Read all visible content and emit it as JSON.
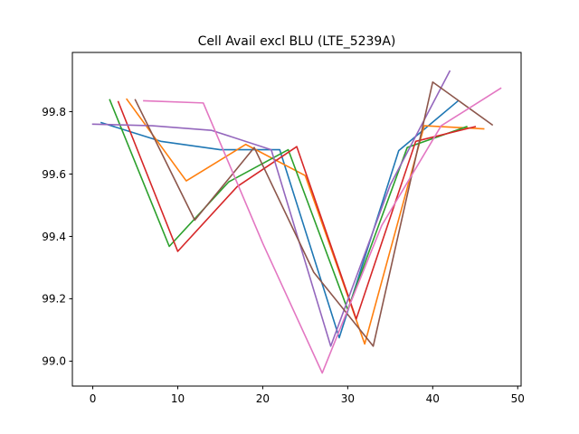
{
  "chart_data": {
    "type": "line",
    "title": "Cell Avail excl BLU (LTE_5239A)",
    "xlabel": "",
    "ylabel": "",
    "xlim": [
      -2.4,
      50.4
    ],
    "ylim": [
      98.92,
      99.99
    ],
    "xticks": [
      0,
      10,
      20,
      30,
      40,
      50
    ],
    "yticks": [
      99.0,
      99.2,
      99.4,
      99.6,
      99.8
    ],
    "ytick_labels": [
      "99.0",
      "99.2",
      "99.4",
      "99.6",
      "99.8"
    ],
    "grid": false,
    "legend": "none",
    "series": [
      {
        "color": "#1f77b4",
        "x": [
          1,
          8,
          15,
          22,
          29,
          36,
          43
        ],
        "y": [
          99.765,
          99.705,
          99.678,
          99.678,
          99.075,
          99.675,
          99.835
        ]
      },
      {
        "color": "#ff7f0e",
        "x": [
          4,
          11,
          18,
          25,
          32,
          39,
          46
        ],
        "y": [
          99.84,
          99.578,
          99.695,
          99.595,
          99.055,
          99.755,
          99.745
        ]
      },
      {
        "color": "#2ca02c",
        "x": [
          2,
          9,
          16,
          23,
          30,
          37,
          44
        ],
        "y": [
          99.838,
          99.368,
          99.575,
          99.678,
          99.165,
          99.685,
          99.752
        ]
      },
      {
        "color": "#d62728",
        "x": [
          3,
          10,
          17,
          24,
          31,
          38,
          45
        ],
        "y": [
          99.832,
          99.352,
          99.56,
          99.688,
          99.135,
          99.705,
          99.752
        ]
      },
      {
        "color": "#9467bd",
        "x": [
          0,
          7,
          14,
          21,
          28,
          35,
          42
        ],
        "y": [
          99.76,
          99.755,
          99.74,
          99.678,
          99.048,
          99.565,
          99.93
        ]
      },
      {
        "color": "#8c564b",
        "x": [
          5,
          12,
          19,
          26,
          33,
          40,
          47
        ],
        "y": [
          99.838,
          99.452,
          99.685,
          99.285,
          99.048,
          99.895,
          99.758
        ]
      },
      {
        "color": "#e377c2",
        "x": [
          6,
          13,
          20,
          27,
          34,
          41,
          48
        ],
        "y": [
          99.835,
          99.828,
          99.378,
          98.962,
          99.435,
          99.755,
          99.875
        ]
      }
    ]
  }
}
